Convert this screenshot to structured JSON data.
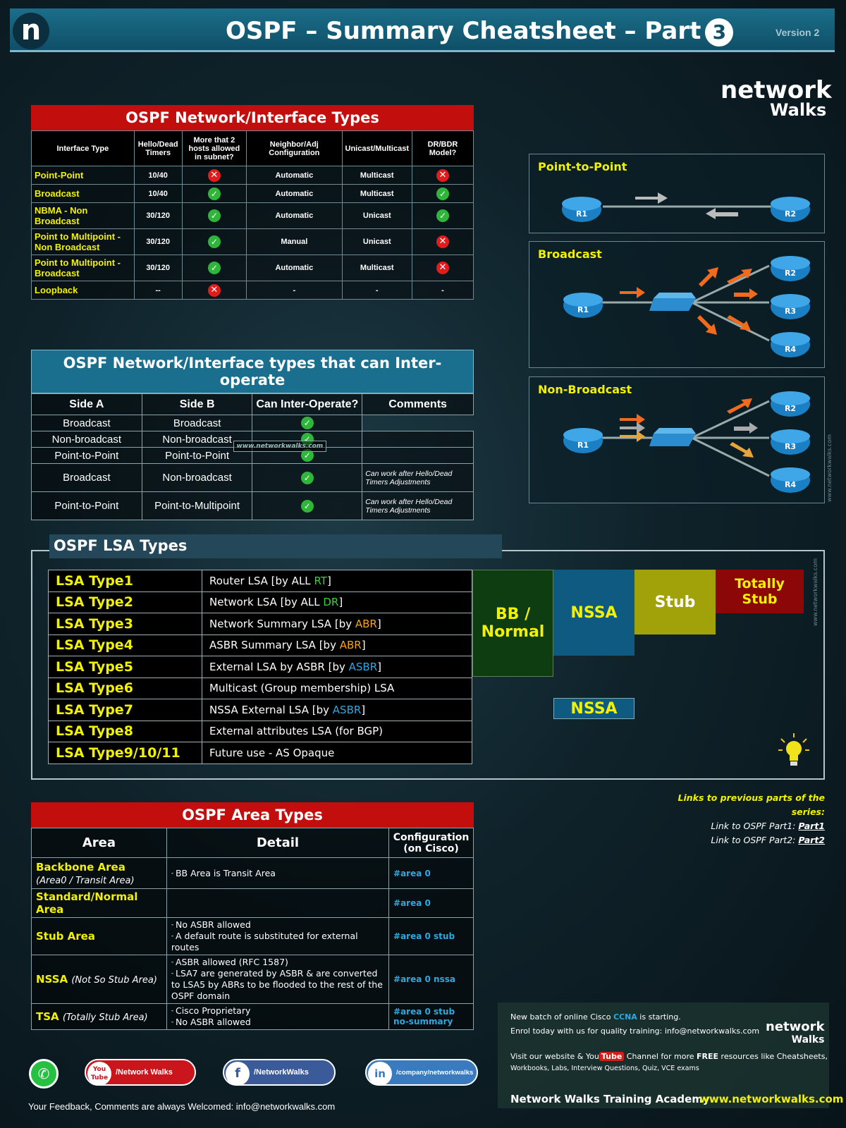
{
  "header": {
    "logo_letter": "n",
    "title": "OSPF – Summary Cheatsheet – Part",
    "part_number": "3",
    "version": "Version 2"
  },
  "brand": {
    "line1": "network",
    "line2": "Walks"
  },
  "interface_types": {
    "title": "OSPF Network/Interface Types",
    "columns": [
      "Interface Type",
      "Hello/Dead Timers",
      "More that 2 hosts allowed in subnet?",
      "Neighbor/Adj Configuration",
      "Unicast/Multicast",
      "DR/BDR Model?"
    ],
    "rows": [
      {
        "type": "Point-Point",
        "timers": "10/40",
        "multi_hosts": "no",
        "adj": "Automatic",
        "cast": "Multicast",
        "dr": "no"
      },
      {
        "type": "Broadcast",
        "timers": "10/40",
        "multi_hosts": "yes",
        "adj": "Automatic",
        "cast": "Multicast",
        "dr": "yes"
      },
      {
        "type": "NBMA - Non Broadcast",
        "timers": "30/120",
        "multi_hosts": "yes",
        "adj": "Automatic",
        "cast": "Unicast",
        "dr": "yes"
      },
      {
        "type": "Point to Multipoint - Non Broadcast",
        "timers": "30/120",
        "multi_hosts": "yes",
        "adj": "Manual",
        "cast": "Unicast",
        "dr": "no"
      },
      {
        "type": "Point to Multipoint - Broadcast",
        "timers": "30/120",
        "multi_hosts": "yes",
        "adj": "Automatic",
        "cast": "Multicast",
        "dr": "no"
      },
      {
        "type": "Loopback",
        "timers": "--",
        "multi_hosts": "no",
        "adj": "-",
        "cast": "-",
        "dr": "-"
      }
    ]
  },
  "interop": {
    "title": "OSPF Network/Interface types that can Inter-operate",
    "columns": [
      "Side A",
      "Side B",
      "Can Inter-Operate?",
      "Comments"
    ],
    "rows": [
      {
        "a": "Broadcast",
        "b": "Broadcast",
        "ok": "yes",
        "comment": ""
      },
      {
        "a": "Non-broadcast",
        "b": "Non-broadcast",
        "ok": "yes",
        "comment": ""
      },
      {
        "a": "Point-to-Point",
        "b": "Point-to-Point",
        "ok": "yes",
        "comment": ""
      },
      {
        "a": "Broadcast",
        "b": "Non-broadcast",
        "ok": "yes",
        "comment": "Can work after Hello/Dead Timers Adjustments"
      },
      {
        "a": "Point-to-Point",
        "b": "Point-to-Multipoint",
        "ok": "yes",
        "comment": "Can work after Hello/Dead Timers Adjustments"
      }
    ],
    "watermark": "www.networkwalks.com"
  },
  "diagrams": {
    "p2p": {
      "title": "Point-to-Point",
      "routers": [
        "R1",
        "R2"
      ]
    },
    "broadcast": {
      "title": "Broadcast",
      "routers": [
        "R1",
        "R2",
        "R3",
        "R4"
      ]
    },
    "nonbroadcast": {
      "title": "Non-Broadcast",
      "routers": [
        "R1",
        "R2",
        "R3",
        "R4"
      ]
    },
    "watermark": "www.networkwalks.com"
  },
  "lsa": {
    "title": "OSPF LSA Types",
    "rows": [
      {
        "name": "LSA Type1",
        "desc_pre": "Router LSA [by ALL ",
        "hl": "RT",
        "hl_color": "green",
        "desc_post": "]"
      },
      {
        "name": "LSA Type2",
        "desc_pre": "Network LSA [by ALL ",
        "hl": "DR",
        "hl_color": "green",
        "desc_post": "]"
      },
      {
        "name": "LSA Type3",
        "desc_pre": "Network Summary LSA [by ",
        "hl": "ABR",
        "hl_color": "orange",
        "desc_post": "]"
      },
      {
        "name": "LSA Type4",
        "desc_pre": "ASBR Summary LSA [by ",
        "hl": "ABR",
        "hl_color": "orange",
        "desc_post": "]"
      },
      {
        "name": "LSA Type5",
        "desc_pre": "External LSA by ASBR [by ",
        "hl": "ASBR",
        "hl_color": "blue",
        "desc_post": "]"
      },
      {
        "name": "LSA Type6",
        "desc_pre": "Multicast (Group membership) LSA",
        "hl": "",
        "hl_color": "",
        "desc_post": ""
      },
      {
        "name": "LSA Type7",
        "desc_pre": "NSSA External LSA [by ",
        "hl": "ASBR",
        "hl_color": "blue",
        "desc_post": "]"
      },
      {
        "name": "LSA Type8",
        "desc_pre": "External attributes LSA (for BGP)",
        "hl": "",
        "hl_color": "",
        "desc_post": ""
      },
      {
        "name": "LSA Type9/10/11",
        "desc_pre": "Future use - AS Opaque",
        "hl": "",
        "hl_color": "",
        "desc_post": ""
      }
    ],
    "area_boxes": {
      "bb": "BB / Normal",
      "nssa": "NSSA",
      "stub": "Stub",
      "totally_stub": "Totally Stub",
      "nssa_type7": "NSSA"
    },
    "colors": {
      "bb": "#0f3d12",
      "nssa": "#0f5a80",
      "stub": "#a1a10a",
      "totally_stub": "#8c0707"
    },
    "watermark": "www.networkwalks.com"
  },
  "links": {
    "title": "Links to previous parts of the series:",
    "l1_label": "Link to OSPF Part1:",
    "l1": "Part1",
    "l2_label": "Link to OSPF Part2:",
    "l2": "Part2"
  },
  "area_types": {
    "title": "OSPF Area Types",
    "columns": [
      "Area",
      "Detail",
      "Configuration (on Cisco)"
    ],
    "rows": [
      {
        "name": "Backbone Area",
        "sub": "(Area0 / Transit Area)",
        "details": [
          "BB Area is Transit Area"
        ],
        "config": "#area 0"
      },
      {
        "name": "Standard/Normal Area",
        "sub": "",
        "details": [],
        "config": "#area 0"
      },
      {
        "name": "Stub Area",
        "sub": "",
        "details": [
          "No ASBR allowed",
          "A default route is substituted for external routes"
        ],
        "config": "#area 0 stub"
      },
      {
        "name": "NSSA",
        "sub": "(Not So Stub Area)",
        "details": [
          "ASBR allowed (RFC 1587)",
          "LSA7 are generated by ASBR & are converted to LSA5 by ABRs to be flooded to the rest of the OSPF domain"
        ],
        "config": "#area 0 nssa"
      },
      {
        "name": "TSA",
        "sub": "(Totally Stub Area)",
        "details": [
          "Cisco Proprietary",
          "No ASBR allowed"
        ],
        "config": "#area 0 stub no-summary"
      }
    ]
  },
  "footer": {
    "youtube": "/Network Walks",
    "youtube_icon": "You Tube",
    "facebook": "/NetworkWalks",
    "facebook_icon": "f",
    "linkedin": "/company/networkwalks",
    "linkedin_icon": "in",
    "whatsapp_icon": "whatsapp",
    "feedback": "Your Feedback, Comments are always Welcomed: info@networkwalks.com",
    "promo": {
      "line1_pre": "New batch of online Cisco ",
      "line1_hl": "CCNA",
      "line1_post": " is starting.",
      "line2": "Enrol today with us for quality training: info@networkwalks.com",
      "line3_pre": "Visit our website & You",
      "line3_yt": "Tube",
      "line3_mid": " Channel for more ",
      "line3_free": "FREE",
      "line3_post": " resources like Cheatsheets,",
      "line4": "Workbooks, Labs, Interview Questions, Quiz, VCE exams",
      "academy": "Network Walks Training Academy",
      "website": "www.networkwalks.com",
      "brand1": "network",
      "brand2": "Walks"
    }
  }
}
